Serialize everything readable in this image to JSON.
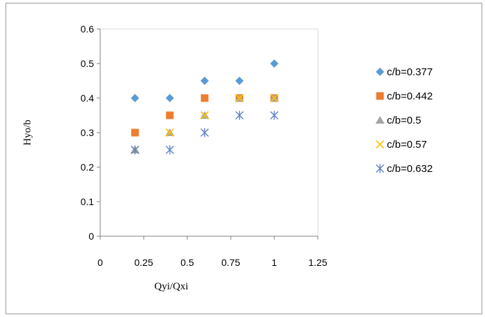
{
  "chart_data": {
    "type": "scatter",
    "title": "",
    "xlabel": "Qyi/Qxi",
    "ylabel": "Hyo/b",
    "xlim": [
      0,
      1.25
    ],
    "ylim": [
      0,
      0.6
    ],
    "xticks": [
      "0",
      "0.25",
      "0.5",
      "0.75",
      "1",
      "1.25"
    ],
    "yticks": [
      "0",
      "0.1",
      "0.2",
      "0.3",
      "0.4",
      "0.5",
      "0.6"
    ],
    "grid": false,
    "legend_position": "right",
    "series": [
      {
        "name": "c/b=0.377",
        "marker": "diamond",
        "color": "#5B9BD5",
        "x": [
          0.2,
          0.4,
          0.6,
          0.8,
          1.0
        ],
        "y": [
          0.4,
          0.4,
          0.45,
          0.45,
          0.5
        ]
      },
      {
        "name": "c/b=0.442",
        "marker": "square",
        "color": "#ED7D31",
        "x": [
          0.2,
          0.4,
          0.6,
          0.8,
          1.0
        ],
        "y": [
          0.3,
          0.35,
          0.4,
          0.4,
          0.4
        ]
      },
      {
        "name": "c/b=0.5",
        "marker": "triangle",
        "color": "#A5A5A5",
        "x": [
          0.2,
          0.4,
          0.6,
          0.8,
          1.0
        ],
        "y": [
          0.25,
          0.3,
          0.35,
          0.4,
          0.4
        ]
      },
      {
        "name": "c/b=0.57",
        "marker": "x",
        "color": "#FFC000",
        "x": [
          0.2,
          0.4,
          0.6,
          0.8,
          1.0
        ],
        "y": [
          0.25,
          0.3,
          0.35,
          0.4,
          0.4
        ]
      },
      {
        "name": "c/b=0.632",
        "marker": "asterisk",
        "color": "#5B82C8",
        "x": [
          0.2,
          0.4,
          0.6,
          0.8,
          1.0
        ],
        "y": [
          0.25,
          0.25,
          0.3,
          0.35,
          0.35
        ]
      }
    ]
  }
}
